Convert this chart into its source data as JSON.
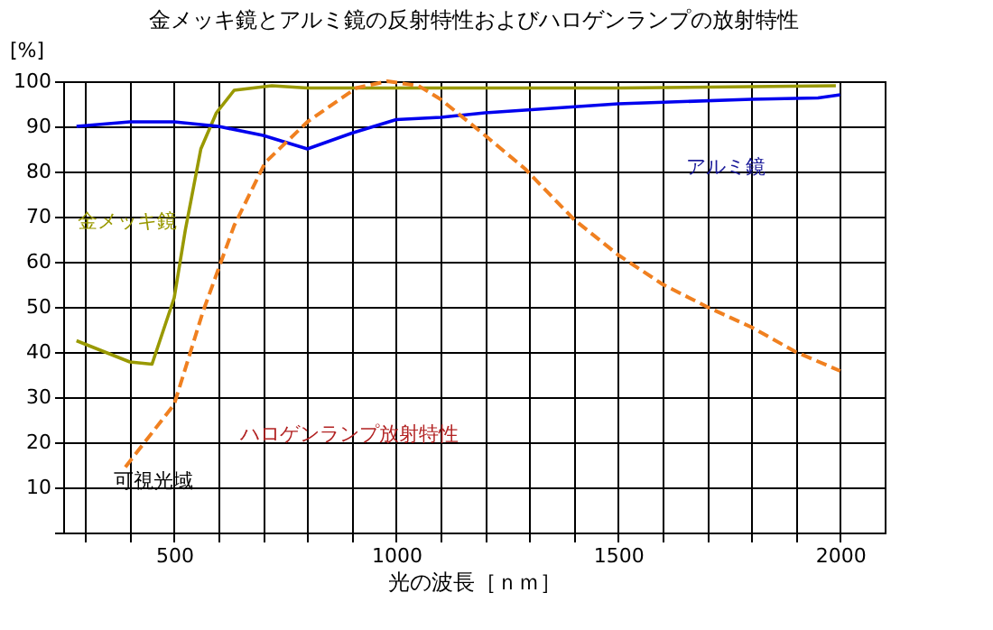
{
  "chart_data": {
    "type": "line",
    "title": "金メッキ鏡とアルミ鏡の反射特性およびハロゲンランプの放射特性",
    "xlabel": "光の波長［ｎｍ］",
    "ylabel": "[%]",
    "xlim": [
      250,
      2100
    ],
    "ylim": [
      0,
      100
    ],
    "xticks": [
      {
        "value": 300,
        "label": null
      },
      {
        "value": 400,
        "label": null
      },
      500,
      {
        "value": 600,
        "label": null
      },
      {
        "value": 700,
        "label": null
      },
      {
        "value": 800,
        "label": null
      },
      {
        "value": 900,
        "label": null
      },
      1000,
      {
        "value": 1100,
        "label": null
      },
      {
        "value": 1200,
        "label": null
      },
      {
        "value": 1300,
        "label": null
      },
      {
        "value": 1400,
        "label": null
      },
      1500,
      {
        "value": 1600,
        "label": null
      },
      {
        "value": 1700,
        "label": null
      },
      {
        "value": 1800,
        "label": null
      },
      {
        "value": 1900,
        "label": null
      },
      2000
    ],
    "yticks": [
      {
        "value": 0,
        "label": null
      },
      10,
      20,
      30,
      40,
      50,
      60,
      70,
      80,
      90,
      100
    ],
    "grid": true,
    "series": [
      {
        "color": "#999900",
        "line_style": "solid",
        "x": [
          280,
          400,
          450,
          500,
          525,
          560,
          595,
          635,
          720,
          800,
          1000,
          1500,
          1990
        ],
        "values": [
          42.5,
          37.8,
          37.3,
          52,
          67,
          85,
          93,
          98,
          99,
          98.5,
          98.5,
          98.5,
          99
        ]
      },
      {
        "color": "#0000ee",
        "line_style": "solid",
        "x": [
          280,
          400,
          500,
          600,
          700,
          800,
          900,
          1000,
          1100,
          1200,
          1500,
          1800,
          1950,
          2000
        ],
        "values": [
          90,
          91,
          91,
          90,
          88,
          85,
          88.5,
          91.5,
          92,
          93,
          95,
          96,
          96.3,
          97
        ]
      },
      {
        "color": "#f08020",
        "line_style": "dashed",
        "x": [
          390,
          500,
          565,
          635,
          705,
          800,
          910,
          980,
          1050,
          1100,
          1200,
          1290,
          1400,
          1500,
          1600,
          1700,
          1800,
          1900,
          2000
        ],
        "values": [
          14.5,
          28.4,
          49,
          68,
          82,
          91,
          98.5,
          100,
          99,
          96,
          88,
          80.6,
          69.4,
          61.5,
          55,
          50,
          45.5,
          40,
          35.8
        ]
      }
    ],
    "annotations": [
      "金メッキ鏡",
      "アルミ鏡",
      "ハロゲンランプ放射特性",
      "可視光域"
    ]
  }
}
